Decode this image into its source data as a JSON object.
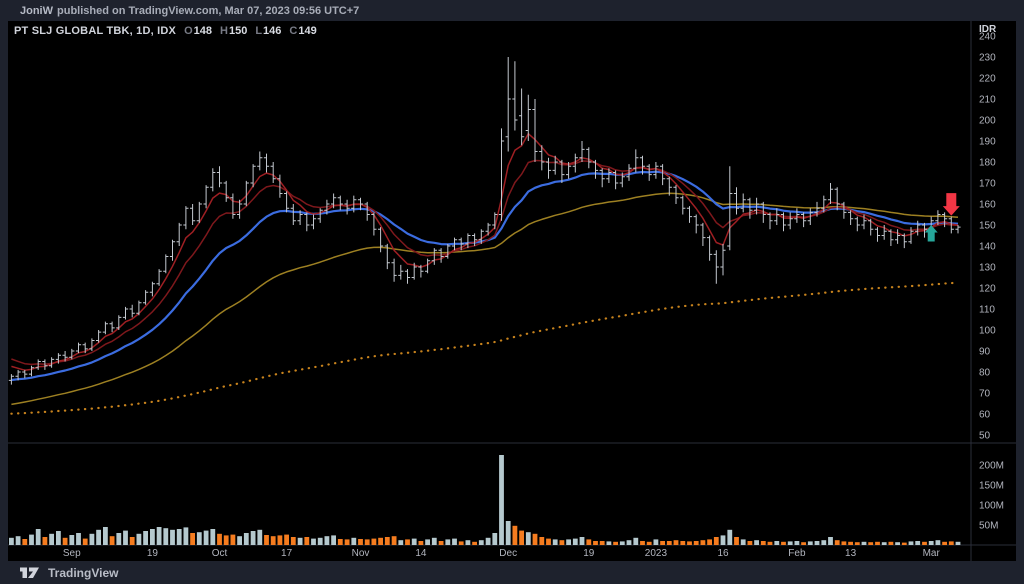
{
  "banner": {
    "user": "JoniW",
    "published": "published on TradingView.com, Mar 07, 2023 09:56 UTC+7"
  },
  "legend": {
    "symbol": "PT SLJ GLOBAL TBK, 1D, IDX",
    "o_label": "O",
    "o_value": "148",
    "h_label": "H",
    "h_value": "150",
    "l_label": "L",
    "l_value": "146",
    "c_label": "C",
    "c_value": "149"
  },
  "footer": {
    "brand": "TradingView"
  },
  "colors": {
    "background": "#000000",
    "frame": "#1e222d",
    "separator": "#2a2e39",
    "bar": "#c3c8cf",
    "axis_text": "#b2b5be",
    "currency_text": "#d1d4dc",
    "vol_up": "#b5c9ce",
    "vol_down": "#f57c1f",
    "marker_up": "#26a69a",
    "marker_down": "#f23645"
  },
  "axes": {
    "currency": "IDR",
    "price_ticks": [
      240,
      230,
      220,
      210,
      200,
      190,
      180,
      170,
      160,
      150,
      140,
      130,
      120,
      110,
      100,
      90,
      80,
      70,
      60,
      50
    ],
    "volume_ticks": [
      {
        "label": "200M",
        "value": 200
      },
      {
        "label": "150M",
        "value": 150
      },
      {
        "label": "100M",
        "value": 100
      },
      {
        "label": "50M",
        "value": 50
      }
    ],
    "time_ticks": [
      {
        "i": 9,
        "label": "Sep"
      },
      {
        "i": 21,
        "label": "19"
      },
      {
        "i": 31,
        "label": "Oct"
      },
      {
        "i": 41,
        "label": "17"
      },
      {
        "i": 52,
        "label": "Nov"
      },
      {
        "i": 61,
        "label": "14"
      },
      {
        "i": 74,
        "label": "Dec"
      },
      {
        "i": 86,
        "label": "19"
      },
      {
        "i": 96,
        "label": "2023"
      },
      {
        "i": 106,
        "label": "16"
      },
      {
        "i": 117,
        "label": "Feb"
      },
      {
        "i": 125,
        "label": "13"
      },
      {
        "i": 137,
        "label": "Mar"
      }
    ]
  },
  "chart_data": {
    "type": "bar",
    "title": "PT SLJ GLOBAL TBK, 1D, IDX",
    "symbol": "PT SLJ GLOBAL TBK",
    "timeframe": "1D",
    "exchange": "IDX",
    "last_bar": {
      "open": 148,
      "high": 150,
      "low": 146,
      "close": 149
    },
    "ylabel": "IDR",
    "price_range": [
      50,
      240
    ],
    "volume_range_m": [
      0,
      255
    ],
    "grid": false,
    "legend_position": "top-left",
    "volume_unit": "M",
    "ohlcv": [
      [
        76,
        79,
        74,
        78,
        18
      ],
      [
        78,
        81,
        76,
        80,
        22
      ],
      [
        80,
        81,
        77,
        79,
        15
      ],
      [
        79,
        83,
        78,
        82,
        26
      ],
      [
        82,
        86,
        81,
        85,
        40
      ],
      [
        85,
        86,
        81,
        83,
        20
      ],
      [
        83,
        87,
        82,
        86,
        28
      ],
      [
        86,
        89,
        84,
        88,
        35
      ],
      [
        88,
        90,
        85,
        87,
        18
      ],
      [
        87,
        91,
        86,
        90,
        25
      ],
      [
        90,
        94,
        89,
        93,
        30
      ],
      [
        93,
        94,
        89,
        91,
        16
      ],
      [
        91,
        96,
        90,
        95,
        28
      ],
      [
        95,
        100,
        94,
        99,
        38
      ],
      [
        99,
        104,
        98,
        103,
        45
      ],
      [
        103,
        104,
        99,
        101,
        22
      ],
      [
        101,
        107,
        100,
        106,
        30
      ],
      [
        106,
        111,
        105,
        110,
        36
      ],
      [
        110,
        112,
        106,
        108,
        20
      ],
      [
        108,
        114,
        107,
        113,
        28
      ],
      [
        113,
        119,
        112,
        118,
        35
      ],
      [
        118,
        123,
        116,
        122,
        40
      ],
      [
        122,
        129,
        121,
        128,
        45
      ],
      [
        128,
        136,
        127,
        135,
        42
      ],
      [
        135,
        143,
        133,
        142,
        38
      ],
      [
        142,
        151,
        140,
        150,
        40
      ],
      [
        150,
        159,
        148,
        158,
        44
      ],
      [
        158,
        160,
        150,
        152,
        30
      ],
      [
        152,
        161,
        151,
        160,
        32
      ],
      [
        160,
        169,
        158,
        168,
        36
      ],
      [
        168,
        177,
        166,
        175,
        40
      ],
      [
        175,
        178,
        168,
        170,
        28
      ],
      [
        170,
        171,
        161,
        163,
        24
      ],
      [
        163,
        165,
        153,
        155,
        26
      ],
      [
        155,
        162,
        153,
        160,
        22
      ],
      [
        160,
        171,
        159,
        170,
        30
      ],
      [
        170,
        179,
        168,
        178,
        35
      ],
      [
        178,
        185,
        176,
        182,
        38
      ],
      [
        182,
        184,
        175,
        178,
        25
      ],
      [
        178,
        180,
        170,
        172,
        22
      ],
      [
        172,
        174,
        163,
        165,
        24
      ],
      [
        165,
        166,
        156,
        158,
        26
      ],
      [
        158,
        160,
        150,
        152,
        20
      ],
      [
        152,
        157,
        150,
        155,
        18
      ],
      [
        155,
        156,
        147,
        150,
        20
      ],
      [
        150,
        155,
        148,
        153,
        16
      ],
      [
        153,
        158,
        151,
        157,
        18
      ],
      [
        157,
        162,
        155,
        160,
        22
      ],
      [
        160,
        165,
        158,
        163,
        24
      ],
      [
        163,
        164,
        157,
        160,
        15
      ],
      [
        160,
        162,
        155,
        158,
        14
      ],
      [
        158,
        164,
        156,
        162,
        18
      ],
      [
        162,
        163,
        157,
        160,
        15
      ],
      [
        160,
        161,
        152,
        155,
        14
      ],
      [
        155,
        156,
        145,
        148,
        16
      ],
      [
        148,
        149,
        137,
        140,
        18
      ],
      [
        140,
        141,
        129,
        132,
        20
      ],
      [
        132,
        134,
        123,
        126,
        22
      ],
      [
        126,
        131,
        124,
        128,
        12
      ],
      [
        128,
        129,
        122,
        125,
        14
      ],
      [
        125,
        132,
        124,
        130,
        16
      ],
      [
        130,
        131,
        125,
        128,
        10
      ],
      [
        128,
        134,
        127,
        133,
        14
      ],
      [
        133,
        139,
        131,
        138,
        18
      ],
      [
        138,
        139,
        132,
        135,
        10
      ],
      [
        135,
        141,
        134,
        140,
        14
      ],
      [
        140,
        144,
        138,
        143,
        16
      ],
      [
        143,
        144,
        138,
        141,
        9
      ],
      [
        141,
        146,
        139,
        145,
        12
      ],
      [
        145,
        146,
        140,
        143,
        8
      ],
      [
        143,
        148,
        141,
        147,
        12
      ],
      [
        147,
        151,
        145,
        150,
        18
      ],
      [
        150,
        156,
        148,
        155,
        30
      ],
      [
        155,
        196,
        152,
        190,
        225
      ],
      [
        192,
        230,
        185,
        210,
        60
      ],
      [
        210,
        228,
        195,
        200,
        48
      ],
      [
        202,
        215,
        188,
        192,
        36
      ],
      [
        195,
        212,
        190,
        205,
        32
      ],
      [
        205,
        210,
        180,
        185,
        28
      ],
      [
        185,
        188,
        176,
        180,
        20
      ],
      [
        180,
        182,
        172,
        176,
        16
      ],
      [
        176,
        183,
        174,
        180,
        14
      ],
      [
        180,
        181,
        170,
        174,
        12
      ],
      [
        174,
        180,
        172,
        178,
        14
      ],
      [
        178,
        184,
        175,
        182,
        16
      ],
      [
        182,
        190,
        180,
        186,
        20
      ],
      [
        186,
        187,
        177,
        180,
        14
      ],
      [
        180,
        181,
        172,
        176,
        10
      ],
      [
        176,
        177,
        168,
        172,
        10
      ],
      [
        172,
        177,
        170,
        175,
        9
      ],
      [
        175,
        176,
        167,
        170,
        8
      ],
      [
        170,
        175,
        168,
        173,
        9
      ],
      [
        173,
        179,
        171,
        177,
        12
      ],
      [
        177,
        186,
        175,
        182,
        18
      ],
      [
        182,
        183,
        174,
        178,
        10
      ],
      [
        178,
        179,
        171,
        174,
        8
      ],
      [
        174,
        180,
        172,
        178,
        14
      ],
      [
        178,
        179,
        169,
        172,
        10
      ],
      [
        172,
        173,
        164,
        168,
        10
      ],
      [
        168,
        169,
        160,
        163,
        12
      ],
      [
        163,
        164,
        155,
        158,
        10
      ],
      [
        158,
        159,
        151,
        154,
        9
      ],
      [
        154,
        155,
        146,
        150,
        10
      ],
      [
        150,
        151,
        140,
        144,
        12
      ],
      [
        144,
        145,
        133,
        136,
        14
      ],
      [
        136,
        138,
        122,
        130,
        20
      ],
      [
        130,
        141,
        126,
        138,
        24
      ],
      [
        140,
        178,
        138,
        165,
        38
      ],
      [
        165,
        168,
        155,
        158,
        20
      ],
      [
        158,
        165,
        156,
        162,
        14
      ],
      [
        162,
        163,
        153,
        157,
        10
      ],
      [
        157,
        163,
        155,
        160,
        12
      ],
      [
        160,
        161,
        151,
        155,
        10
      ],
      [
        155,
        156,
        148,
        152,
        8
      ],
      [
        152,
        158,
        150,
        155,
        10
      ],
      [
        155,
        156,
        147,
        150,
        8
      ],
      [
        150,
        156,
        148,
        153,
        9
      ],
      [
        153,
        158,
        151,
        155,
        10
      ],
      [
        155,
        156,
        149,
        152,
        7
      ],
      [
        152,
        158,
        150,
        156,
        9
      ],
      [
        156,
        161,
        154,
        158,
        10
      ],
      [
        158,
        164,
        156,
        162,
        12
      ],
      [
        162,
        170,
        160,
        167,
        20
      ],
      [
        167,
        168,
        157,
        160,
        12
      ],
      [
        160,
        161,
        153,
        156,
        9
      ],
      [
        156,
        157,
        150,
        153,
        8
      ],
      [
        153,
        154,
        147,
        150,
        7
      ],
      [
        150,
        155,
        148,
        152,
        8
      ],
      [
        152,
        153,
        145,
        148,
        7
      ],
      [
        148,
        149,
        142,
        145,
        8
      ],
      [
        145,
        150,
        143,
        147,
        7
      ],
      [
        147,
        148,
        140,
        143,
        8
      ],
      [
        143,
        148,
        141,
        145,
        7
      ],
      [
        145,
        146,
        139,
        142,
        6
      ],
      [
        142,
        149,
        141,
        147,
        9
      ],
      [
        147,
        152,
        145,
        150,
        10
      ],
      [
        150,
        151,
        144,
        148,
        8
      ],
      [
        148,
        154,
        146,
        152,
        10
      ],
      [
        152,
        157,
        150,
        155,
        12
      ],
      [
        155,
        156,
        149,
        153,
        8
      ],
      [
        153,
        154,
        146,
        148,
        9
      ],
      [
        148,
        150,
        146,
        149,
        8
      ]
    ],
    "ma_lines": [
      {
        "name": "MA-long-dotted",
        "period": 250,
        "seed": 60,
        "color": "#c8831d",
        "width": 2.2,
        "dotted": true
      },
      {
        "name": "MA50",
        "period": 50,
        "seed": 64,
        "color": "#9d8022",
        "width": 1.5,
        "dotted": false
      },
      {
        "name": "MA20",
        "period": 20,
        "seed": 76,
        "color": "#3b6ce0",
        "width": 2.2,
        "dotted": false
      },
      {
        "name": "MA10",
        "period": 10,
        "seed": 88,
        "color": "#7e181c",
        "width": 1.5,
        "dotted": false
      },
      {
        "name": "MA5",
        "period": 5,
        "seed": 85,
        "color": "#9e1f23",
        "width": 1.5,
        "dotted": false
      }
    ],
    "markers": [
      {
        "bar": 137,
        "direction": "up",
        "price": 150,
        "color": "#26a69a"
      },
      {
        "bar": 140,
        "direction": "down",
        "price": 154.5,
        "color": "#f23645"
      }
    ]
  }
}
